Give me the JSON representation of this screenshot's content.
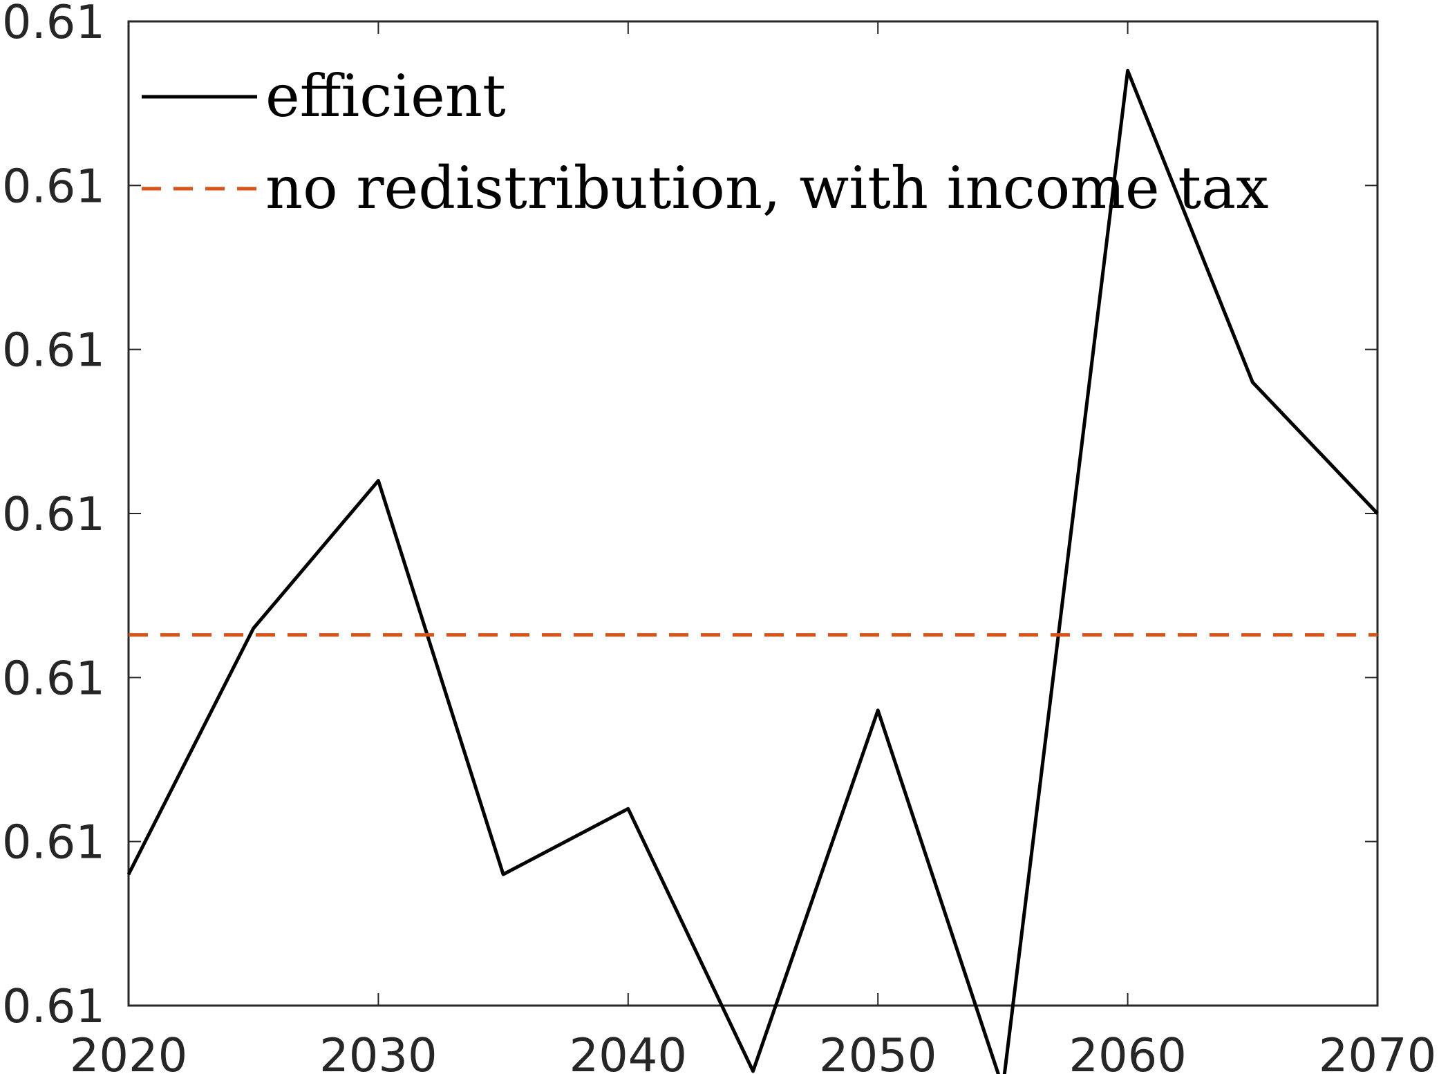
{
  "chart_data": {
    "type": "line",
    "title": "",
    "xlabel": "",
    "ylabel": "",
    "xlim": [
      2020,
      2070
    ],
    "ylim": [
      0.6086,
      0.6092
    ],
    "x_ticks": [
      "2020",
      "2030",
      "2040",
      "2050",
      "2060",
      "2070"
    ],
    "y_ticks": [
      "0.61",
      "0.61",
      "0.61",
      "0.61",
      "0.61",
      "0.61",
      "0.61"
    ],
    "grid": false,
    "legend_position": "top-left",
    "series": [
      {
        "name": "efficient",
        "style": "solid",
        "color": "#000000",
        "x": [
          2020,
          2025,
          2030,
          2035,
          2040,
          2045,
          2050,
          2055,
          2060,
          2065,
          2070
        ],
        "y": [
          0.60868,
          0.60883,
          0.60892,
          0.60868,
          0.60872,
          0.60856,
          0.60878,
          0.60855,
          0.60917,
          0.60898,
          0.6089
        ]
      },
      {
        "name": "no redistribution, with income tax",
        "style": "dashed",
        "color": "#d95319",
        "x": [
          2020,
          2070
        ],
        "y": [
          0.608826,
          0.608826
        ]
      }
    ]
  }
}
